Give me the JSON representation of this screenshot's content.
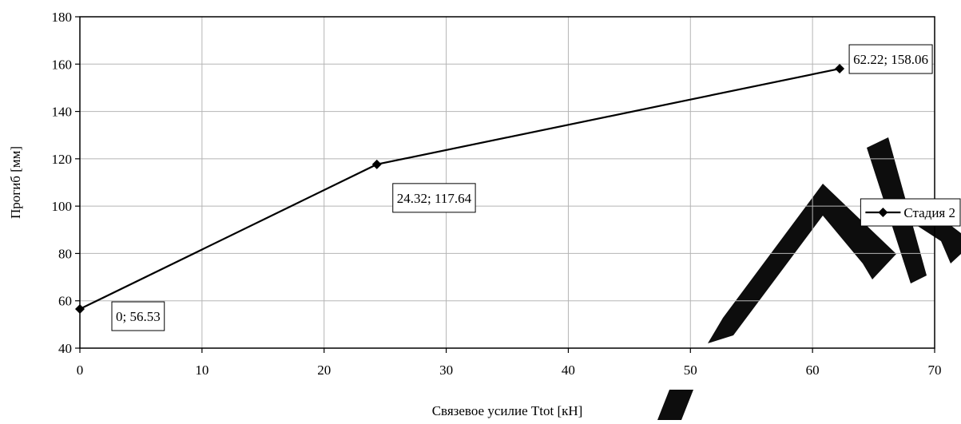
{
  "chart_data": {
    "type": "line",
    "title": "",
    "xlabel": "Связевое усилие Ttot [кН]",
    "ylabel": "Прогиб [мм]",
    "xlim": [
      0,
      70
    ],
    "ylim": [
      40,
      180
    ],
    "x_ticks": [
      0,
      10,
      20,
      30,
      40,
      50,
      60,
      70
    ],
    "y_ticks": [
      40,
      60,
      80,
      100,
      120,
      140,
      160,
      180
    ],
    "grid": true,
    "legend_position": "right",
    "series": [
      {
        "name": "Стадия 2",
        "color": "#000000",
        "marker": "diamond",
        "points": [
          {
            "x": 0,
            "y": 56.53,
            "label": "0; 56.53"
          },
          {
            "x": 24.32,
            "y": 117.64,
            "label": "24.32; 117.64"
          },
          {
            "x": 62.22,
            "y": 158.06,
            "label": "62.22; 158.06"
          }
        ]
      }
    ]
  },
  "watermark": {
    "text": "БГТУ",
    "color": "#000000"
  }
}
